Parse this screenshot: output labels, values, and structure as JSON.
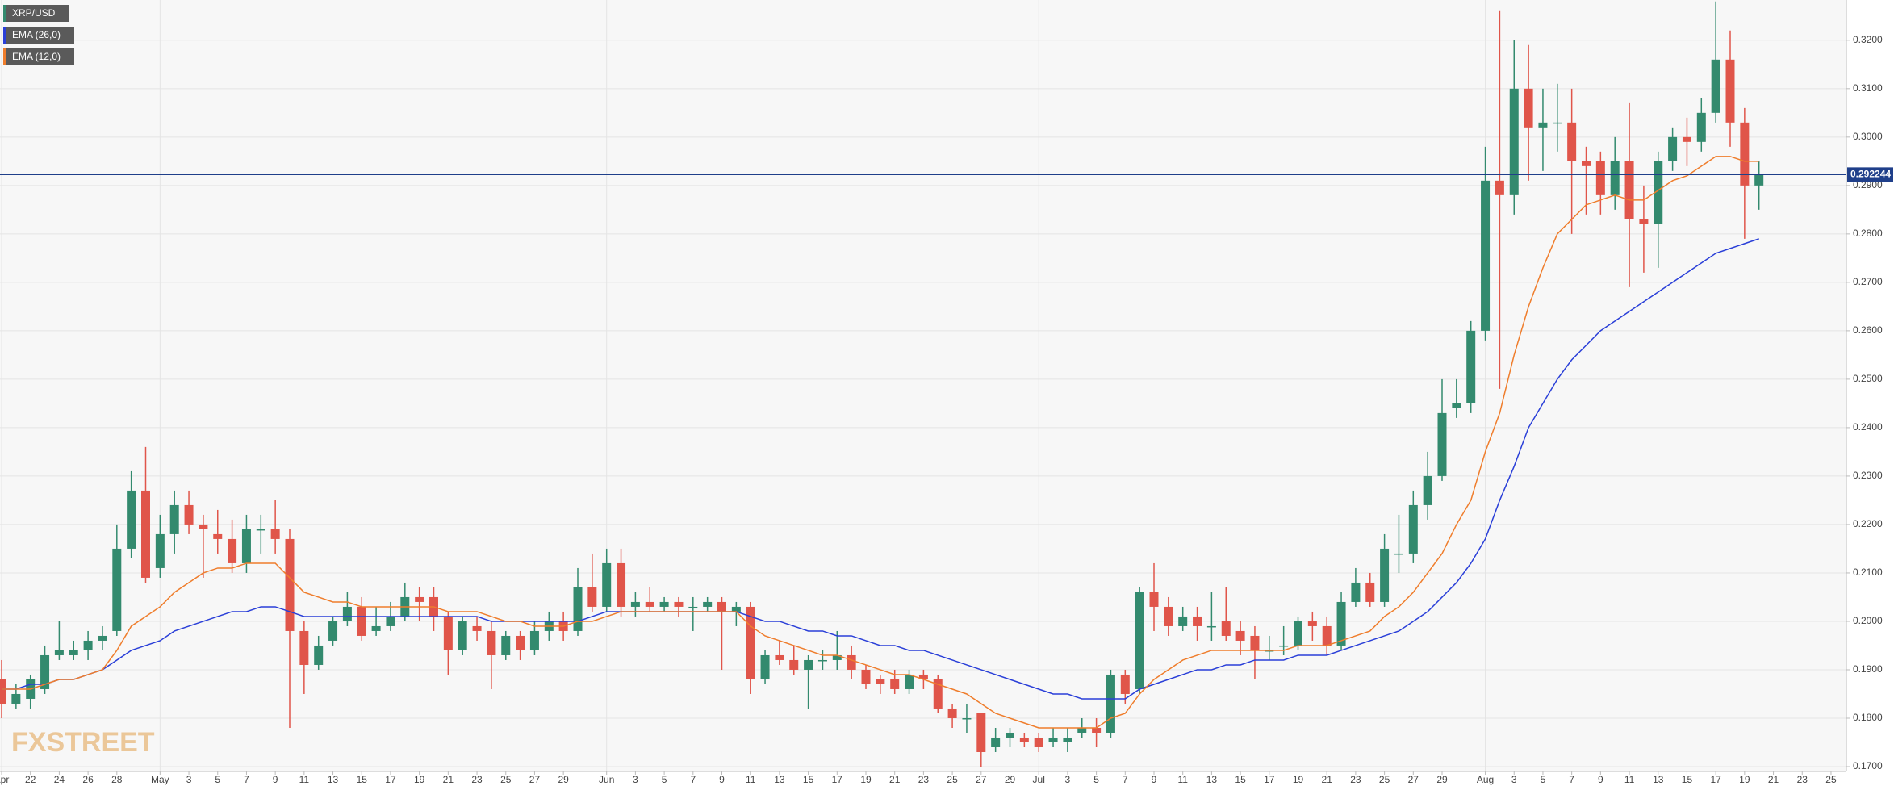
{
  "chart_data": {
    "type": "candlestick",
    "watermark": "FXSTREET",
    "categories": [
      "Apr",
      null,
      "22",
      null,
      "24",
      null,
      "26",
      null,
      "28",
      null,
      null,
      "May",
      null,
      "3",
      null,
      "5",
      null,
      "7",
      null,
      "9",
      null,
      "11",
      null,
      "13",
      null,
      "15",
      null,
      "17",
      null,
      "19",
      null,
      "21",
      null,
      "23",
      null,
      "25",
      null,
      "27",
      null,
      "29",
      null,
      null,
      "Jun",
      null,
      "3",
      null,
      "5",
      null,
      "7",
      null,
      "9",
      null,
      "11",
      null,
      "13",
      null,
      "15",
      null,
      "17",
      null,
      "19",
      null,
      "21",
      null,
      "23",
      null,
      "25",
      null,
      "27",
      null,
      "29",
      null,
      "Jul",
      null,
      "3",
      null,
      "5",
      null,
      "7",
      null,
      "9",
      null,
      "11",
      null,
      "13",
      null,
      "15",
      null,
      "17",
      null,
      "19",
      null,
      "21",
      null,
      "23",
      null,
      "25",
      null,
      "27",
      null,
      "29",
      null,
      null,
      "Aug",
      null,
      "3",
      null,
      "5",
      null,
      "7",
      null,
      "9",
      null,
      "11",
      null,
      "13",
      null,
      "15",
      null,
      "17",
      null,
      "19",
      null,
      "21",
      null,
      "23",
      null,
      "25"
    ],
    "series": [
      {
        "name": "XRP/USD",
        "up_color": "#338a6e",
        "down_color": "#e0554a",
        "legend_color": "#338a6e",
        "open": [
          0.188,
          0.183,
          0.184,
          0.186,
          0.193,
          0.193,
          0.194,
          0.196,
          0.198,
          0.215,
          0.227,
          0.211,
          0.218,
          0.224,
          0.22,
          0.218,
          0.217,
          0.212,
          0.219,
          0.219,
          0.217,
          0.198,
          0.191,
          0.196,
          0.2,
          0.203,
          0.198,
          0.199,
          0.201,
          0.205,
          0.205,
          0.201,
          0.194,
          0.199,
          0.198,
          0.193,
          0.197,
          0.194,
          0.198,
          0.2,
          0.198,
          0.207,
          0.203,
          0.212,
          0.203,
          0.204,
          0.203,
          0.204,
          0.203,
          0.203,
          0.204,
          0.202,
          0.203,
          0.188,
          0.193,
          0.192,
          0.19,
          0.192,
          0.192,
          0.193,
          0.19,
          0.188,
          0.188,
          0.186,
          0.189,
          0.188,
          0.182,
          0.18,
          0.181,
          0.174,
          0.176,
          0.176,
          0.176,
          0.175,
          0.175,
          0.177,
          0.178,
          0.177,
          0.189,
          0.186,
          0.206,
          0.203,
          0.199,
          0.201,
          0.199,
          0.2,
          0.198,
          0.197,
          0.194,
          0.195,
          0.195,
          0.2,
          0.199,
          0.195,
          0.204,
          0.208,
          0.204,
          0.214,
          0.214,
          0.224,
          0.23,
          0.244,
          0.245,
          0.26,
          0.291,
          0.288,
          0.31,
          0.302,
          0.303,
          0.303,
          0.295,
          0.295,
          0.288,
          0.295,
          0.283,
          0.282,
          0.295,
          0.3,
          0.299,
          0.305,
          0.316,
          0.303,
          0.29,
          null,
          null,
          null,
          null,
          null
        ],
        "high": [
          0.192,
          0.187,
          0.189,
          0.195,
          0.2,
          0.196,
          0.198,
          0.199,
          0.22,
          0.231,
          0.236,
          0.222,
          0.227,
          0.227,
          0.222,
          0.223,
          0.221,
          0.222,
          0.222,
          0.225,
          0.219,
          0.2,
          0.197,
          0.201,
          0.206,
          0.205,
          0.203,
          0.204,
          0.208,
          0.207,
          0.207,
          0.202,
          0.201,
          0.201,
          0.2,
          0.198,
          0.198,
          0.2,
          0.202,
          0.202,
          0.211,
          0.214,
          0.215,
          0.215,
          0.206,
          0.207,
          0.205,
          0.205,
          0.205,
          0.205,
          0.205,
          0.204,
          0.204,
          0.194,
          0.196,
          0.195,
          0.193,
          0.194,
          0.198,
          0.195,
          0.191,
          0.189,
          0.19,
          0.19,
          0.19,
          0.189,
          0.183,
          0.183,
          0.181,
          0.178,
          0.178,
          0.177,
          0.177,
          0.178,
          0.178,
          0.18,
          0.18,
          0.19,
          0.19,
          0.207,
          0.212,
          0.205,
          0.203,
          0.203,
          0.206,
          0.207,
          0.2,
          0.199,
          0.197,
          0.199,
          0.201,
          0.202,
          0.201,
          0.206,
          0.211,
          0.21,
          0.218,
          0.222,
          0.227,
          0.235,
          0.25,
          0.25,
          0.262,
          0.298,
          0.326,
          0.32,
          0.319,
          0.31,
          0.311,
          0.31,
          0.298,
          0.297,
          0.3,
          0.307,
          0.29,
          0.297,
          0.302,
          0.304,
          0.308,
          0.328,
          0.322,
          0.306,
          0.295,
          null,
          null,
          null,
          null,
          null
        ],
        "low": [
          0.18,
          0.182,
          0.182,
          0.185,
          0.192,
          0.192,
          0.192,
          0.194,
          0.197,
          0.213,
          0.208,
          0.209,
          0.214,
          0.218,
          0.209,
          0.214,
          0.21,
          0.21,
          0.214,
          0.214,
          0.178,
          0.185,
          0.19,
          0.195,
          0.199,
          0.196,
          0.197,
          0.198,
          0.2,
          0.2,
          0.198,
          0.189,
          0.193,
          0.196,
          0.186,
          0.192,
          0.192,
          0.193,
          0.196,
          0.196,
          0.197,
          0.202,
          0.202,
          0.201,
          0.201,
          0.202,
          0.202,
          0.201,
          0.198,
          0.202,
          0.19,
          0.199,
          0.185,
          0.187,
          0.191,
          0.189,
          0.182,
          0.19,
          0.19,
          0.188,
          0.186,
          0.185,
          0.185,
          0.185,
          0.186,
          0.181,
          0.178,
          0.177,
          0.17,
          0.173,
          0.174,
          0.174,
          0.173,
          0.174,
          0.173,
          0.176,
          0.174,
          0.176,
          0.183,
          0.185,
          0.198,
          0.197,
          0.198,
          0.196,
          0.196,
          0.196,
          0.193,
          0.188,
          0.192,
          0.193,
          0.194,
          0.196,
          0.193,
          0.194,
          0.203,
          0.203,
          0.203,
          0.21,
          0.212,
          0.221,
          0.229,
          0.242,
          0.243,
          0.258,
          0.248,
          0.284,
          0.291,
          0.293,
          0.297,
          0.28,
          0.284,
          0.284,
          0.285,
          0.269,
          0.272,
          0.273,
          0.293,
          0.294,
          0.297,
          0.303,
          0.298,
          0.279,
          0.285,
          null,
          null,
          null,
          null,
          null
        ],
        "close": [
          0.183,
          0.185,
          0.188,
          0.193,
          0.194,
          0.194,
          0.196,
          0.197,
          0.215,
          0.227,
          0.209,
          0.218,
          0.224,
          0.22,
          0.219,
          0.217,
          0.212,
          0.219,
          0.219,
          0.217,
          0.198,
          0.191,
          0.195,
          0.2,
          0.203,
          0.197,
          0.199,
          0.201,
          0.205,
          0.204,
          0.201,
          0.194,
          0.2,
          0.198,
          0.193,
          0.197,
          0.194,
          0.198,
          0.2,
          0.198,
          0.207,
          0.203,
          0.212,
          0.203,
          0.204,
          0.203,
          0.204,
          0.203,
          0.203,
          0.204,
          0.202,
          0.203,
          0.188,
          0.193,
          0.192,
          0.19,
          0.192,
          0.192,
          0.193,
          0.19,
          0.187,
          0.187,
          0.186,
          0.189,
          0.188,
          0.182,
          0.18,
          0.18,
          0.173,
          0.176,
          0.177,
          0.175,
          0.174,
          0.176,
          0.176,
          0.178,
          0.177,
          0.189,
          0.185,
          0.206,
          0.203,
          0.199,
          0.201,
          0.199,
          0.199,
          0.197,
          0.196,
          0.194,
          0.194,
          0.195,
          0.2,
          0.199,
          0.195,
          0.204,
          0.208,
          0.204,
          0.215,
          0.214,
          0.224,
          0.23,
          0.243,
          0.245,
          0.26,
          0.291,
          0.288,
          0.31,
          0.302,
          0.303,
          0.303,
          0.295,
          0.294,
          0.288,
          0.295,
          0.283,
          0.282,
          0.295,
          0.3,
          0.299,
          0.305,
          0.316,
          0.303,
          0.29,
          0.292244,
          null,
          null,
          null,
          null,
          null
        ]
      },
      {
        "name": "EMA (26,0)",
        "color": "#2a3fd8",
        "values": [
          0.186,
          0.186,
          0.187,
          0.187,
          0.188,
          0.188,
          0.189,
          0.19,
          0.192,
          0.194,
          0.195,
          0.196,
          0.198,
          0.199,
          0.2,
          0.201,
          0.202,
          0.202,
          0.203,
          0.203,
          0.202,
          0.201,
          0.201,
          0.201,
          0.201,
          0.201,
          0.201,
          0.201,
          0.201,
          0.201,
          0.201,
          0.201,
          0.201,
          0.201,
          0.2,
          0.2,
          0.2,
          0.2,
          0.2,
          0.2,
          0.2,
          0.201,
          0.202,
          0.202,
          0.202,
          0.202,
          0.202,
          0.202,
          0.202,
          0.202,
          0.202,
          0.202,
          0.201,
          0.2,
          0.2,
          0.199,
          0.198,
          0.198,
          0.197,
          0.197,
          0.196,
          0.195,
          0.195,
          0.194,
          0.194,
          0.193,
          0.192,
          0.191,
          0.19,
          0.189,
          0.188,
          0.187,
          0.186,
          0.185,
          0.185,
          0.184,
          0.184,
          0.184,
          0.184,
          0.186,
          0.187,
          0.188,
          0.189,
          0.19,
          0.19,
          0.191,
          0.191,
          0.192,
          0.192,
          0.192,
          0.193,
          0.193,
          0.193,
          0.194,
          0.195,
          0.196,
          0.197,
          0.198,
          0.2,
          0.202,
          0.205,
          0.208,
          0.212,
          0.217,
          0.225,
          0.232,
          0.24,
          0.245,
          0.25,
          0.254,
          0.257,
          0.26,
          0.262,
          0.264,
          0.266,
          0.268,
          0.27,
          0.272,
          0.274,
          0.276,
          0.277,
          0.278,
          0.279,
          null,
          null,
          null,
          null,
          null
        ]
      },
      {
        "name": "EMA (12,0)",
        "color": "#ef7d2c",
        "values": [
          0.186,
          0.186,
          0.186,
          0.187,
          0.188,
          0.188,
          0.189,
          0.19,
          0.194,
          0.199,
          0.201,
          0.203,
          0.206,
          0.208,
          0.21,
          0.211,
          0.211,
          0.212,
          0.212,
          0.212,
          0.209,
          0.206,
          0.205,
          0.204,
          0.204,
          0.203,
          0.203,
          0.203,
          0.203,
          0.203,
          0.203,
          0.202,
          0.202,
          0.202,
          0.201,
          0.2,
          0.2,
          0.199,
          0.199,
          0.199,
          0.2,
          0.2,
          0.201,
          0.202,
          0.202,
          0.202,
          0.202,
          0.202,
          0.202,
          0.202,
          0.202,
          0.202,
          0.199,
          0.197,
          0.196,
          0.195,
          0.194,
          0.193,
          0.193,
          0.192,
          0.191,
          0.19,
          0.189,
          0.189,
          0.188,
          0.187,
          0.186,
          0.185,
          0.183,
          0.181,
          0.18,
          0.179,
          0.178,
          0.178,
          0.178,
          0.178,
          0.178,
          0.18,
          0.181,
          0.185,
          0.188,
          0.19,
          0.192,
          0.193,
          0.194,
          0.194,
          0.194,
          0.194,
          0.194,
          0.194,
          0.195,
          0.195,
          0.195,
          0.196,
          0.197,
          0.198,
          0.201,
          0.203,
          0.206,
          0.21,
          0.214,
          0.22,
          0.225,
          0.235,
          0.243,
          0.255,
          0.265,
          0.273,
          0.28,
          0.283,
          0.286,
          0.287,
          0.288,
          0.287,
          0.287,
          0.289,
          0.291,
          0.292,
          0.294,
          0.296,
          0.296,
          0.295,
          0.295,
          null,
          null,
          null,
          null,
          null
        ]
      }
    ],
    "price_line": 0.292244,
    "price_line_color": "#1f3f8a",
    "ylim": [
      0.169,
      0.3283
    ],
    "yticks": [
      {
        "value": 0.17,
        "label": "0.1700"
      },
      {
        "value": 0.18,
        "label": "0.1800"
      },
      {
        "value": 0.19,
        "label": "0.1900"
      },
      {
        "value": 0.2,
        "label": "0.2000"
      },
      {
        "value": 0.21,
        "label": "0.2100"
      },
      {
        "value": 0.22,
        "label": "0.2200"
      },
      {
        "value": 0.23,
        "label": "0.2300"
      },
      {
        "value": 0.24,
        "label": "0.2400"
      },
      {
        "value": 0.25,
        "label": "0.2500"
      },
      {
        "value": 0.26,
        "label": "0.2600"
      },
      {
        "value": 0.27,
        "label": "0.2700"
      },
      {
        "value": 0.28,
        "label": "0.2800"
      },
      {
        "value": 0.29,
        "label": "0.2900"
      },
      {
        "value": 0.3,
        "label": "0.3000"
      },
      {
        "value": 0.31,
        "label": "0.3100"
      },
      {
        "value": 0.32,
        "label": "0.3200"
      }
    ],
    "grid": true
  }
}
